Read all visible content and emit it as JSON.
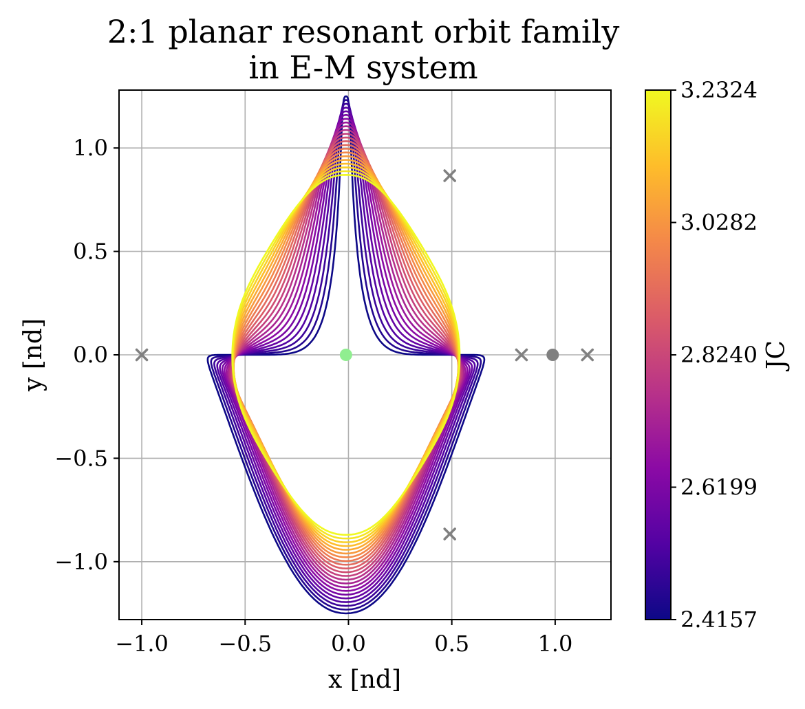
{
  "chart_data": {
    "type": "line",
    "title_lines": [
      "2:1 planar resonant orbit family",
      "in E-M system"
    ],
    "xlabel": "x [nd]",
    "ylabel": "y [nd]",
    "xlim": [
      -1.11,
      1.27
    ],
    "ylim": [
      -1.28,
      1.28
    ],
    "xticks": [
      -1.0,
      -0.5,
      0.0,
      0.5,
      1.0
    ],
    "xtick_labels": [
      "−1.0",
      "−0.5",
      "0.0",
      "0.5",
      "1.0"
    ],
    "yticks": [
      1.0,
      0.5,
      0.0,
      -0.5,
      -1.0
    ],
    "ytick_labels": [
      "1.0",
      "0.5",
      "0.0",
      "−0.5",
      "−1.0"
    ],
    "grid": true,
    "colormap": "plasma",
    "colorbar": {
      "label": "JC",
      "range": [
        2.4157,
        3.2324
      ],
      "ticks": [
        3.2324,
        3.0282,
        2.824,
        2.6199,
        2.4157
      ],
      "tick_labels": [
        "3.2324",
        "3.0282",
        "2.8240",
        "2.6199",
        "2.4157"
      ],
      "stops": [
        "#0d0887",
        "#5302a3",
        "#8b0aa5",
        "#b83289",
        "#db5c68",
        "#f48849",
        "#febd2a",
        "#f0f921"
      ]
    },
    "family": {
      "count": 22,
      "jc_range": [
        2.4157,
        3.2324
      ],
      "lobe_center_y": [
        0.74,
        0.84
      ],
      "lobe_radius": [
        0.51,
        0.03
      ],
      "outer_x": [
        0.51,
        0.55
      ],
      "outer_y": [
        0.0,
        0.62
      ]
    },
    "markers": [
      {
        "kind": "x",
        "x": -1.0,
        "y": 0.0,
        "color": "#808080"
      },
      {
        "kind": "x",
        "x": 0.49,
        "y": 0.866,
        "color": "#808080"
      },
      {
        "kind": "x",
        "x": 0.49,
        "y": -0.866,
        "color": "#808080"
      },
      {
        "kind": "x",
        "x": 0.837,
        "y": 0.0,
        "color": "#808080"
      },
      {
        "kind": "x",
        "x": 1.156,
        "y": 0.0,
        "color": "#808080"
      },
      {
        "kind": "dot",
        "x": 0.988,
        "y": 0.0,
        "color": "#808080"
      },
      {
        "kind": "dot",
        "x": -0.012,
        "y": 0.0,
        "color": "#90ee90"
      }
    ]
  }
}
